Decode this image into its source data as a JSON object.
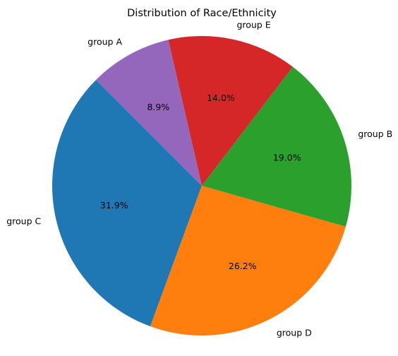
{
  "chart_data": {
    "type": "pie",
    "title": "Distribution of Race/Ethnicity",
    "start_angle_deg": 135,
    "direction": "counterclockwise",
    "slices": [
      {
        "label": "group C",
        "value": 31.9,
        "pct_label": "31.9%",
        "color": "#1f77b4"
      },
      {
        "label": "group D",
        "value": 26.2,
        "pct_label": "26.2%",
        "color": "#ff7f0e"
      },
      {
        "label": "group B",
        "value": 19.0,
        "pct_label": "19.0%",
        "color": "#2ca02c"
      },
      {
        "label": "group E",
        "value": 14.0,
        "pct_label": "14.0%",
        "color": "#d62728"
      },
      {
        "label": "group A",
        "value": 8.9,
        "pct_label": "8.9%",
        "color": "#9467bd"
      }
    ]
  }
}
